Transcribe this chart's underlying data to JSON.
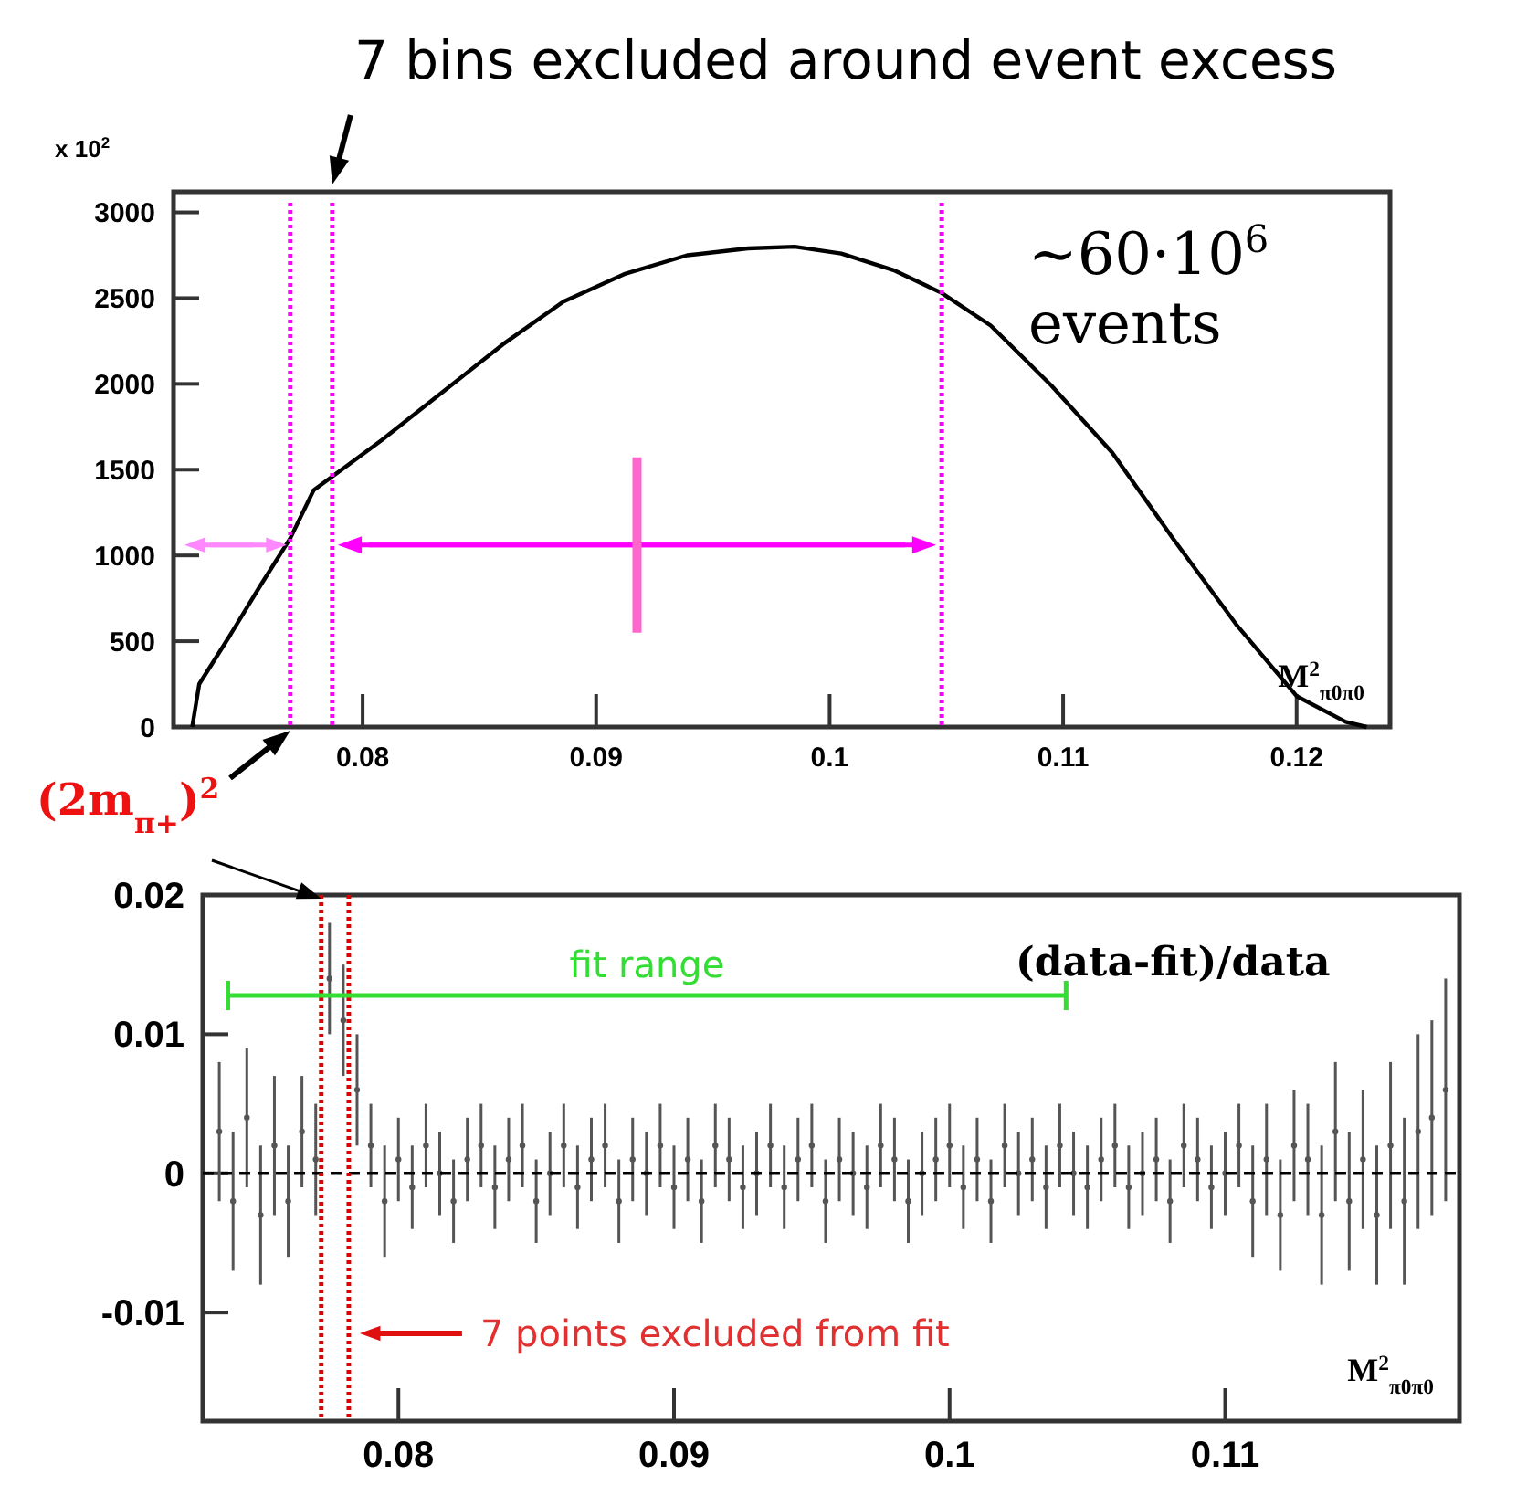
{
  "chart_data": [
    {
      "type": "line",
      "title": "7 bins excluded around event excess",
      "xlabel": "M$^{2}$$_{π0π0}$",
      "color": "#000000",
      "x": [
        0.0727,
        0.073,
        0.0743,
        0.0756,
        0.0769,
        0.0779,
        0.0787,
        0.0808,
        0.0834,
        0.086,
        0.0886,
        0.0912,
        0.0939,
        0.0965,
        0.0985,
        0.1005,
        0.1028,
        0.1048,
        0.1069,
        0.1095,
        0.1121,
        0.1147,
        0.1174,
        0.12,
        0.1221,
        0.123
      ],
      "values": [
        0,
        250,
        530,
        820,
        1100,
        1380,
        1460,
        1670,
        1950,
        2230,
        2480,
        2640,
        2750,
        2790,
        2800,
        2760,
        2660,
        2530,
        2340,
        1990,
        1600,
        1100,
        600,
        180,
        30,
        0
      ],
      "xlim": [
        0.0719,
        0.124
      ],
      "xticks": [
        0.08,
        0.09,
        0.1,
        0.11,
        0.12
      ],
      "ylim": [
        0,
        3120
      ],
      "yticks": [
        0,
        500,
        1000,
        1500,
        2000,
        2500,
        3000
      ],
      "ref_lines": [
        {
          "axis": "x",
          "value": 0.0769,
          "color": "#ff00ff",
          "line_style": "dotted"
        },
        {
          "axis": "x",
          "value": 0.0787,
          "color": "#ff00ff",
          "line_style": "dotted"
        },
        {
          "axis": "x",
          "value": 0.1048,
          "color": "#ff00ff",
          "line_style": "dotted"
        }
      ],
      "annotations": [
        "x 10$^{2}$",
        "~60·10$^{6}$ events",
        "(2m$_{π+}$)$^{2}$"
      ]
    },
    {
      "type": "scatter",
      "xlabel": "M$^{2}$$_{π0π0}$",
      "color": "#555555",
      "marker": "circle",
      "x": [
        0.0735,
        0.074,
        0.0745,
        0.075,
        0.0755,
        0.076,
        0.0765,
        0.077,
        0.0775,
        0.078,
        0.0785,
        0.079,
        0.0795,
        0.08,
        0.0805,
        0.081,
        0.0815,
        0.082,
        0.0825,
        0.083,
        0.0835,
        0.084,
        0.0845,
        0.085,
        0.0855,
        0.086,
        0.0865,
        0.087,
        0.0875,
        0.088,
        0.0885,
        0.089,
        0.0895,
        0.09,
        0.0905,
        0.091,
        0.0915,
        0.092,
        0.0925,
        0.093,
        0.0935,
        0.094,
        0.0945,
        0.095,
        0.0955,
        0.096,
        0.0965,
        0.097,
        0.0975,
        0.098,
        0.0985,
        0.099,
        0.0995,
        0.1,
        0.1005,
        0.101,
        0.1015,
        0.102,
        0.1025,
        0.103,
        0.1035,
        0.104,
        0.1045,
        0.105,
        0.1055,
        0.106,
        0.1065,
        0.107,
        0.1075,
        0.108,
        0.1085,
        0.109,
        0.1095,
        0.11,
        0.1105,
        0.111,
        0.1115,
        0.112,
        0.1125,
        0.113,
        0.1135,
        0.114,
        0.1145,
        0.115,
        0.1155,
        0.116,
        0.1165,
        0.117,
        0.1175,
        0.118
      ],
      "values": [
        0.003,
        -0.002,
        0.004,
        -0.003,
        0.002,
        -0.002,
        0.003,
        0.001,
        0.014,
        0.011,
        0.006,
        0.002,
        -0.002,
        0.001,
        -0.001,
        0.002,
        0,
        -0.002,
        0.001,
        0.002,
        -0.001,
        0.001,
        0.002,
        -0.002,
        0,
        0.002,
        -0.001,
        0.001,
        0.002,
        -0.002,
        0.001,
        0,
        0.002,
        -0.001,
        0.001,
        -0.002,
        0.002,
        0.001,
        -0.001,
        0,
        0.002,
        -0.001,
        0.001,
        0.002,
        -0.002,
        0.001,
        0,
        -0.001,
        0.002,
        0.001,
        -0.002,
        0,
        0.001,
        0.002,
        -0.001,
        0.001,
        -0.002,
        0.002,
        0,
        0.001,
        -0.001,
        0.002,
        0,
        -0.001,
        0.001,
        0.002,
        -0.001,
        0,
        0.001,
        -0.002,
        0.002,
        0.001,
        -0.001,
        0,
        0.002,
        -0.002,
        0.001,
        -0.003,
        0.002,
        0.001,
        -0.003,
        0.003,
        -0.002,
        0.001,
        -0.003,
        0.002,
        -0.002,
        0.003,
        0.004,
        0.006
      ],
      "errors": [
        0.005,
        0.005,
        0.005,
        0.005,
        0.005,
        0.004,
        0.004,
        0.004,
        0.004,
        0.004,
        0.004,
        0.003,
        0.004,
        0.003,
        0.003,
        0.003,
        0.003,
        0.003,
        0.003,
        0.003,
        0.003,
        0.003,
        0.003,
        0.003,
        0.003,
        0.003,
        0.003,
        0.003,
        0.003,
        0.003,
        0.003,
        0.003,
        0.003,
        0.003,
        0.003,
        0.003,
        0.003,
        0.003,
        0.003,
        0.003,
        0.003,
        0.003,
        0.003,
        0.003,
        0.003,
        0.003,
        0.003,
        0.003,
        0.003,
        0.003,
        0.003,
        0.003,
        0.003,
        0.003,
        0.003,
        0.003,
        0.003,
        0.003,
        0.003,
        0.003,
        0.003,
        0.003,
        0.003,
        0.003,
        0.003,
        0.003,
        0.003,
        0.003,
        0.003,
        0.003,
        0.003,
        0.003,
        0.003,
        0.003,
        0.003,
        0.004,
        0.004,
        0.004,
        0.004,
        0.004,
        0.005,
        0.005,
        0.005,
        0.005,
        0.005,
        0.006,
        0.006,
        0.007,
        0.007,
        0.008
      ],
      "xlim": [
        0.0729,
        0.1185
      ],
      "xticks": [
        0.08,
        0.09,
        0.1,
        0.11
      ],
      "ylim": [
        -0.0178,
        0.02
      ],
      "yticks": [
        -0.01,
        0,
        0.01,
        0.02
      ],
      "ref_lines": [
        {
          "axis": "y",
          "value": 0,
          "color": "#000000",
          "line_style": "dashed"
        },
        {
          "axis": "x",
          "value": 0.0772,
          "color": "#dd0000",
          "line_style": "dotted"
        },
        {
          "axis": "x",
          "value": 0.0782,
          "color": "#dd0000",
          "line_style": "dotted"
        }
      ],
      "annotations": [
        "(data-fit)/data",
        "7 points excluded from fit",
        "fit range"
      ]
    }
  ]
}
